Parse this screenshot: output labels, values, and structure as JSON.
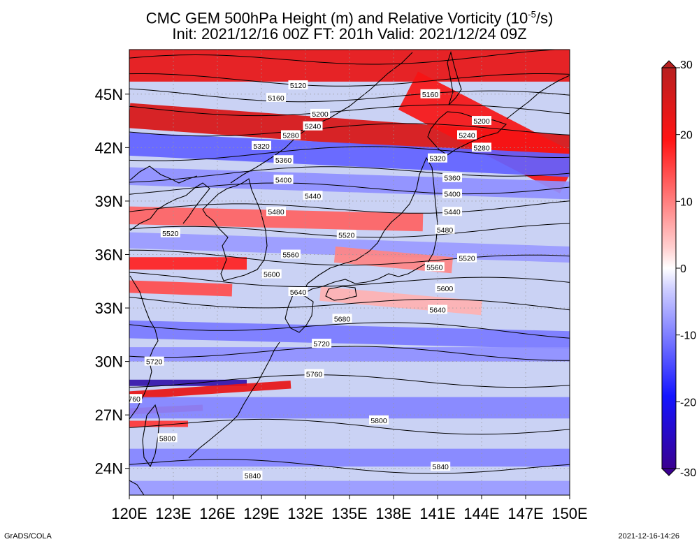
{
  "title": {
    "prefix": "CMC GEM 500hPa Height (m) and Relative Vorticity (10",
    "exp": "-5",
    "suffix": "/s)",
    "line2": "Init: 2021/12/16 00Z  FT: 201h  Valid: 2021/12/24 09Z"
  },
  "footer": {
    "left": "GrADS/COLA",
    "right": "2021-12-16-14:26"
  },
  "chart_data": {
    "type": "heatmap",
    "x_axis": {
      "range": [
        120,
        150
      ],
      "ticks": [
        120,
        123,
        126,
        129,
        132,
        135,
        138,
        141,
        144,
        147,
        150
      ],
      "tick_labels": [
        "120E",
        "123E",
        "126E",
        "129E",
        "132E",
        "135E",
        "138E",
        "141E",
        "144E",
        "147E",
        "150E"
      ]
    },
    "y_axis": {
      "range": [
        22.5,
        47.5
      ],
      "ticks": [
        24,
        27,
        30,
        33,
        36,
        39,
        42,
        45
      ],
      "tick_labels": [
        "24N",
        "27N",
        "30N",
        "33N",
        "36N",
        "39N",
        "42N",
        "45N"
      ]
    },
    "grid": true,
    "colorbar": {
      "range": [
        -30,
        30
      ],
      "ticks": [
        30,
        20,
        10,
        0,
        -10,
        -20,
        -30
      ],
      "tick_labels": [
        "30",
        "20",
        "10",
        "0",
        "-10",
        "-20",
        "-30"
      ],
      "placement": "right",
      "colors": {
        "low": "#3a0090",
        "mid_low": "#1414ff",
        "zero": "#ffffff",
        "mid_high": "#ff1414",
        "high": "#b82020"
      }
    },
    "contours": [
      {
        "value": 5120,
        "label": "5120",
        "lat_w": 47.5,
        "lat_e": 48.6,
        "labels": [
          [
            131.5,
            45.5
          ]
        ]
      },
      {
        "value": 5160,
        "label": "5160",
        "lat_w": 46.8,
        "lat_e": 47.2,
        "labels": [
          [
            130.0,
            44.8
          ],
          [
            140.5,
            45.0
          ]
        ]
      },
      {
        "value": 5200,
        "label": "5200",
        "lat_w": 45.8,
        "lat_e": 45.8,
        "labels": [
          [
            133.0,
            43.9
          ],
          [
            144.0,
            43.5
          ]
        ]
      },
      {
        "value": 5240,
        "label": "5240",
        "lat_w": 45.0,
        "lat_e": 44.8,
        "labels": [
          [
            132.5,
            43.2
          ],
          [
            143.0,
            42.7
          ]
        ]
      },
      {
        "value": 5280,
        "label": "5280",
        "lat_w": 44.2,
        "lat_e": 44.0,
        "labels": [
          [
            131.0,
            42.7
          ],
          [
            144.0,
            42.0
          ]
        ]
      },
      {
        "value": 5320,
        "label": "5320",
        "lat_w": 43.0,
        "lat_e": 43.0,
        "labels": [
          [
            129.0,
            42.1
          ],
          [
            141.0,
            41.4
          ]
        ]
      },
      {
        "value": 5360,
        "label": "5360",
        "lat_w": 41.6,
        "lat_e": 41.8,
        "labels": [
          [
            130.5,
            41.3
          ],
          [
            142.0,
            40.3
          ]
        ]
      },
      {
        "value": 5400,
        "label": "5400",
        "lat_w": 40.4,
        "lat_e": 40.8,
        "labels": [
          [
            130.5,
            40.2
          ],
          [
            142.0,
            39.4
          ]
        ]
      },
      {
        "value": 5440,
        "label": "5440",
        "lat_w": 39.6,
        "lat_e": 39.8,
        "labels": [
          [
            132.5,
            39.3
          ],
          [
            142.0,
            38.4
          ]
        ]
      },
      {
        "value": 5480,
        "label": "5480",
        "lat_w": 38.4,
        "lat_e": 38.8,
        "labels": [
          [
            130.0,
            38.4
          ],
          [
            141.5,
            37.4
          ]
        ]
      },
      {
        "value": 5520,
        "label": "5520",
        "lat_w": 37.2,
        "lat_e": 37.4,
        "labels": [
          [
            122.8,
            37.2
          ],
          [
            134.8,
            37.1
          ],
          [
            143.0,
            35.8
          ]
        ]
      },
      {
        "value": 5560,
        "label": "5560",
        "lat_w": 35.9,
        "lat_e": 35.6,
        "labels": [
          [
            131.0,
            36.0
          ],
          [
            140.8,
            35.3
          ]
        ]
      },
      {
        "value": 5600,
        "label": "5600",
        "lat_w": 34.7,
        "lat_e": 34.3,
        "labels": [
          [
            129.7,
            34.9
          ],
          [
            141.5,
            34.1
          ]
        ]
      },
      {
        "value": 5640,
        "label": "5640",
        "lat_w": 33.5,
        "lat_e": 33.0,
        "labels": [
          [
            131.5,
            33.9
          ],
          [
            141.0,
            32.9
          ]
        ]
      },
      {
        "value": 5680,
        "label": "5680",
        "lat_w": 32.2,
        "lat_e": 31.6,
        "labels": [
          [
            134.5,
            32.4
          ]
        ]
      },
      {
        "value": 5720,
        "label": "5720",
        "lat_w": 30.6,
        "lat_e": 30.4,
        "labels": [
          [
            121.7,
            30.0
          ],
          [
            133.1,
            31.0
          ]
        ]
      },
      {
        "value": 5760,
        "label": "5760",
        "lat_w": 28.9,
        "lat_e": 28.9,
        "labels": [
          [
            120.2,
            27.9
          ],
          [
            132.6,
            29.3
          ]
        ]
      },
      {
        "value": 5800,
        "label": "5800",
        "lat_w": 26.5,
        "lat_e": 26.2,
        "labels": [
          [
            122.6,
            25.7
          ],
          [
            137.0,
            26.7
          ]
        ]
      },
      {
        "value": 5840,
        "label": "5840",
        "lat_w": 24.2,
        "lat_e": 24.0,
        "labels": [
          [
            128.4,
            23.6
          ],
          [
            141.2,
            24.1
          ]
        ]
      }
    ],
    "vorticity_bands": [
      {
        "lon0": 120,
        "lon1": 150,
        "lat_w": 46.8,
        "lat_e": 46.8,
        "width": 2.2,
        "value": 24
      },
      {
        "lon0": 120,
        "lon1": 150,
        "lat_w": 43.8,
        "lat_e": 42.0,
        "width": 1.4,
        "value": 26
      },
      {
        "lon0": 139,
        "lon1": 150,
        "lat_w": 45.2,
        "lat_e": 40.5,
        "width": 2.4,
        "value": 22
      },
      {
        "lon0": 120,
        "lon1": 150,
        "lat_w": 42.2,
        "lat_e": 41.0,
        "width": 1.3,
        "value": -14
      },
      {
        "lon0": 120,
        "lon1": 150,
        "lat_w": 40.4,
        "lat_e": 39.6,
        "width": 1.0,
        "value": -10
      },
      {
        "lon0": 120,
        "lon1": 140,
        "lat_w": 38.2,
        "lat_e": 37.8,
        "width": 1.0,
        "value": 14
      },
      {
        "lon0": 120,
        "lon1": 150,
        "lat_w": 36.8,
        "lat_e": 36.0,
        "width": 0.9,
        "value": -9
      },
      {
        "lon0": 120,
        "lon1": 128,
        "lat_w": 35.5,
        "lat_e": 35.5,
        "width": 0.7,
        "value": 20
      },
      {
        "lon0": 120,
        "lon1": 127,
        "lat_w": 34.2,
        "lat_e": 34.0,
        "width": 0.7,
        "value": 16
      },
      {
        "lon0": 134,
        "lon1": 142,
        "lat_w": 36.0,
        "lat_e": 35.4,
        "width": 0.9,
        "value": 11
      },
      {
        "lon0": 133,
        "lon1": 144,
        "lat_w": 33.8,
        "lat_e": 33.0,
        "width": 0.8,
        "value": 7
      },
      {
        "lon0": 120,
        "lon1": 150,
        "lat_w": 31.8,
        "lat_e": 31.2,
        "width": 1.0,
        "value": -12
      },
      {
        "lon0": 120,
        "lon1": 150,
        "lat_w": 30.4,
        "lat_e": 30.4,
        "width": 0.8,
        "value": -10
      },
      {
        "lon0": 120,
        "lon1": 128,
        "lat_w": 28.8,
        "lat_e": 28.8,
        "width": 0.35,
        "value": -28
      },
      {
        "lon0": 120,
        "lon1": 131,
        "lat_w": 28.1,
        "lat_e": 28.7,
        "width": 0.45,
        "value": 24
      },
      {
        "lon0": 120,
        "lon1": 125,
        "lat_w": 27.2,
        "lat_e": 27.4,
        "width": 0.35,
        "value": 22
      },
      {
        "lon0": 120,
        "lon1": 124,
        "lat_w": 26.5,
        "lat_e": 26.5,
        "width": 0.35,
        "value": 18
      },
      {
        "lon0": 120,
        "lon1": 150,
        "lat_w": 27.4,
        "lat_e": 27.4,
        "width": 1.2,
        "value": -11
      },
      {
        "lon0": 120,
        "lon1": 150,
        "lat_w": 24.6,
        "lat_e": 24.6,
        "width": 1.0,
        "value": -11
      },
      {
        "lon0": 120,
        "lon1": 150,
        "lat_w": 22.9,
        "lat_e": 22.9,
        "width": 0.8,
        "value": -9
      }
    ]
  }
}
